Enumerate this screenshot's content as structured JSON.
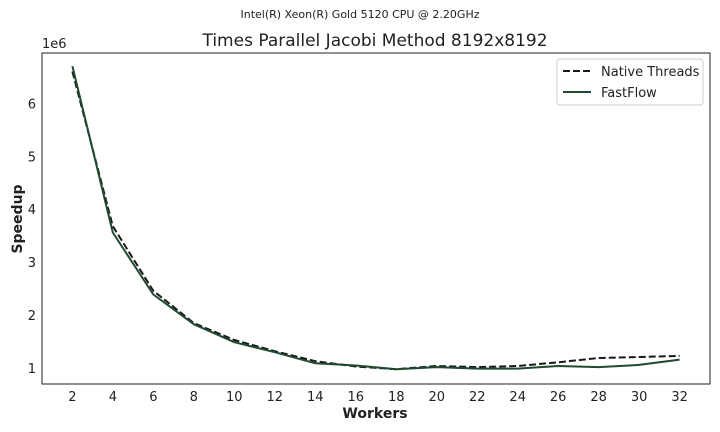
{
  "chart_data": {
    "type": "line",
    "suptitle": "Intel(R) Xeon(R) Gold 5120 CPU @ 2.20GHz",
    "title": "Times Parallel Jacobi Method 8192x8192",
    "xlabel": "Workers",
    "ylabel": "Speedup",
    "y_offset_label": "1e6",
    "x": [
      2,
      4,
      6,
      8,
      10,
      12,
      14,
      16,
      18,
      20,
      22,
      24,
      26,
      28,
      30,
      32
    ],
    "xticks": [
      "2",
      "4",
      "6",
      "8",
      "10",
      "12",
      "14",
      "16",
      "18",
      "20",
      "22",
      "24",
      "26",
      "28",
      "30",
      "32"
    ],
    "yticks": [
      "1",
      "2",
      "3",
      "4",
      "5",
      "6"
    ],
    "xlim": [
      0.5,
      33.5
    ],
    "ylim": [
      0.7,
      6.95
    ],
    "grid": false,
    "legend": "top-right",
    "series": [
      {
        "name": "Native Threads",
        "style": "dashed",
        "color": "#1a1a1a",
        "values": [
          6.6,
          3.68,
          2.46,
          1.85,
          1.53,
          1.32,
          1.13,
          1.03,
          0.98,
          1.04,
          1.02,
          1.04,
          1.11,
          1.19,
          1.21,
          1.23
        ]
      },
      {
        "name": "FastFlow",
        "style": "solid",
        "color": "#1f4a31",
        "values": [
          6.7,
          3.56,
          2.39,
          1.83,
          1.49,
          1.3,
          1.09,
          1.05,
          0.98,
          1.02,
          0.99,
          0.99,
          1.04,
          1.02,
          1.06,
          1.16
        ]
      }
    ]
  }
}
